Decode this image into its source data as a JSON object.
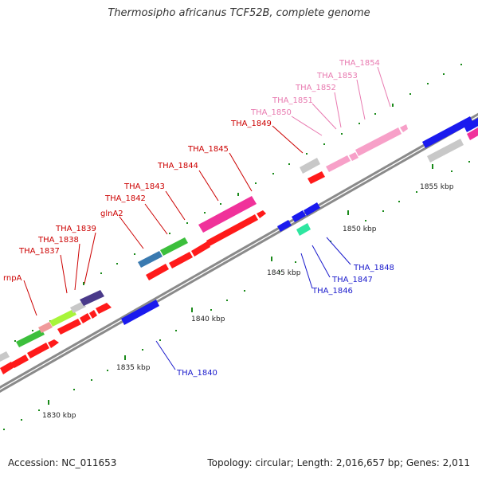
{
  "title": "Thermosipho africanus TCF52B, complete genome",
  "footer": {
    "accession": "Accession: NC_011653",
    "summary": "Topology: circular; Length: 2,016,657 bp; Genes: 2,011"
  },
  "scale": {
    "ticks": [
      "1830 kbp",
      "1835 kbp",
      "1840 kbp",
      "1845 kbp",
      "1850 kbp",
      "1855 kbp"
    ]
  },
  "colors": {
    "backbone": "#7a7a7a",
    "tick": "#1a7a1a",
    "cds_red": "#ff1a1a",
    "label_red": "#cc0000",
    "label_blue": "#1a1acc",
    "label_pink": "#e87ab0"
  },
  "labels": {
    "red": [
      "rnpA",
      "THA_1837",
      "THA_1838",
      "THA_1839",
      "glnA2",
      "THA_1842",
      "THA_1843",
      "THA_1844",
      "THA_1845",
      "THA_1849"
    ],
    "blue": [
      "THA_1840",
      "THA_1846",
      "THA_1847",
      "THA_1848"
    ],
    "pink": [
      "THA_1850",
      "THA_1851",
      "THA_1852",
      "THA_1853",
      "THA_1854"
    ]
  }
}
